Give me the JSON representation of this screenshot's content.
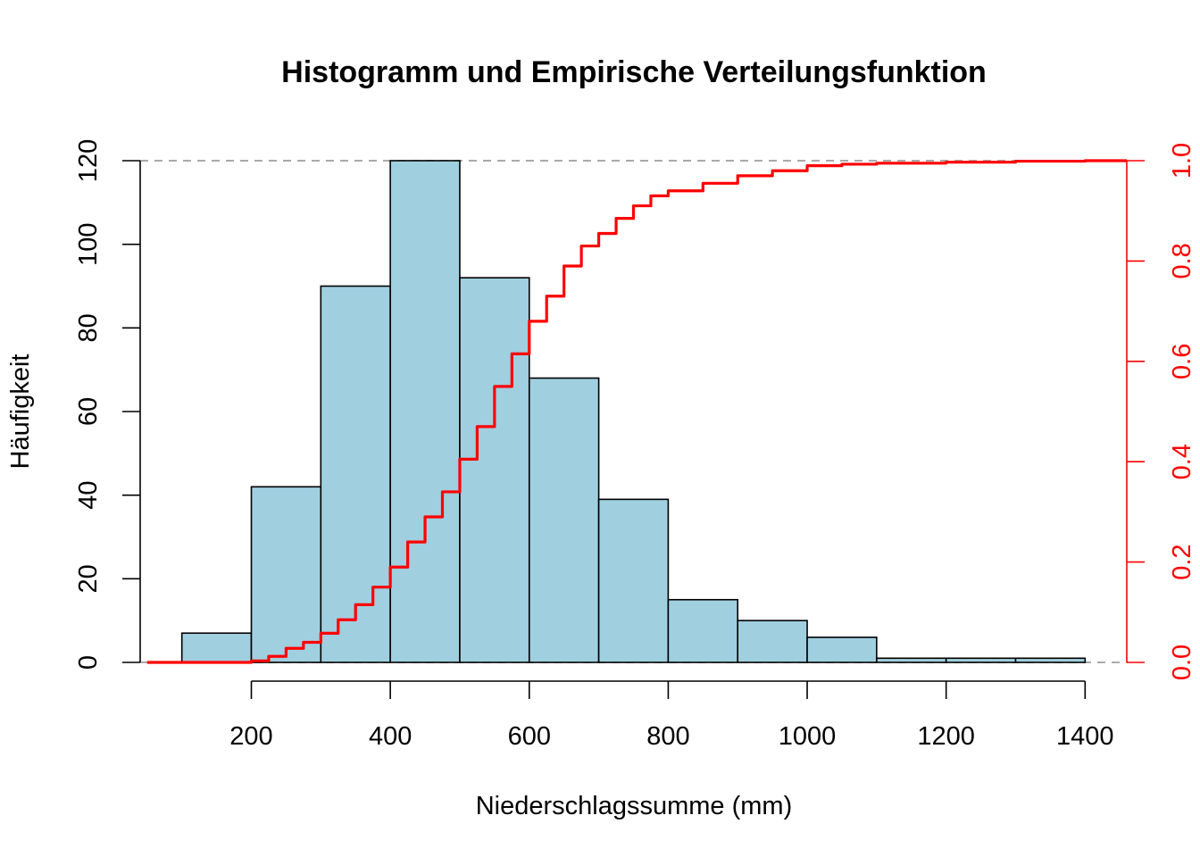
{
  "chart_data": {
    "type": "bar",
    "title": "Histogramm und Empirische Verteilungsfunktion",
    "xlabel": "Niederschlagssumme (mm)",
    "ylabel": "Häufigkeit",
    "bin_edges": [
      100,
      200,
      300,
      400,
      500,
      600,
      700,
      800,
      900,
      1000,
      1100,
      1200,
      1300,
      1400
    ],
    "values": [
      7,
      42,
      90,
      120,
      92,
      68,
      39,
      15,
      10,
      6,
      1,
      1,
      1
    ],
    "xlim": [
      40,
      1460
    ],
    "ylim": [
      0,
      120
    ],
    "x_ticks": [
      200,
      400,
      600,
      800,
      1000,
      1200,
      1400
    ],
    "y_ticks": [
      0,
      20,
      40,
      60,
      80,
      100,
      120
    ],
    "y2_ticks": [
      "0.0",
      "0.2",
      "0.4",
      "0.6",
      "0.8",
      "1.0"
    ],
    "bar_color": "#a0cfe0",
    "secondary_axis": {
      "ylim": [
        0,
        1
      ],
      "color": "#ff0000"
    },
    "series": [
      {
        "type": "step",
        "color": "#ff0000",
        "x": [
          50,
          175,
          200,
          225,
          250,
          275,
          300,
          325,
          350,
          375,
          400,
          425,
          450,
          475,
          500,
          525,
          550,
          575,
          600,
          625,
          650,
          675,
          700,
          725,
          750,
          775,
          800,
          850,
          900,
          950,
          1000,
          1050,
          1100,
          1200,
          1300,
          1400
        ],
        "values": [
          0.0,
          0.0,
          0.003,
          0.012,
          0.028,
          0.04,
          0.058,
          0.085,
          0.115,
          0.15,
          0.19,
          0.24,
          0.29,
          0.34,
          0.405,
          0.47,
          0.55,
          0.615,
          0.68,
          0.73,
          0.79,
          0.83,
          0.855,
          0.885,
          0.91,
          0.93,
          0.94,
          0.955,
          0.97,
          0.98,
          0.99,
          0.993,
          0.995,
          0.997,
          0.999,
          1.0
        ]
      }
    ],
    "reference_lines": [
      0,
      120
    ]
  }
}
